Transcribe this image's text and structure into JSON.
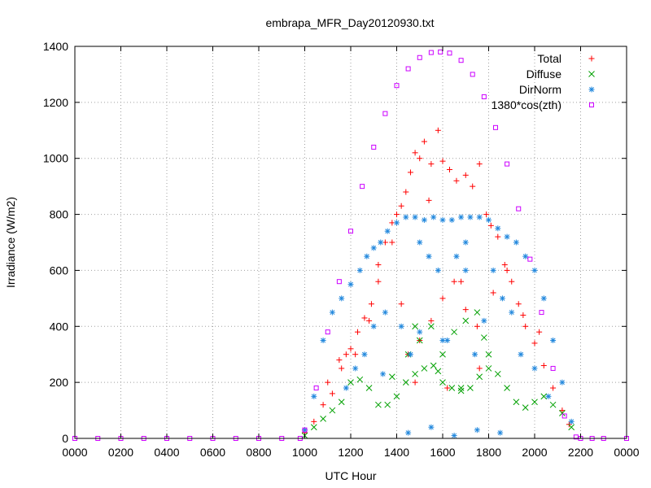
{
  "chart_data": {
    "type": "scatter",
    "title": "embrapa_MFR_Day20120930.txt",
    "xlabel": "UTC Hour",
    "ylabel": "Irradiance (W/m2)",
    "xlim": [
      0,
      2400
    ],
    "ylim": [
      0,
      1400
    ],
    "x_tick_labels": [
      "0000",
      "0200",
      "0400",
      "0600",
      "0800",
      "1000",
      "1200",
      "1400",
      "1600",
      "1800",
      "2000",
      "2200",
      "0000"
    ],
    "y_ticks": [
      0,
      200,
      400,
      600,
      800,
      1000,
      1200,
      1400
    ],
    "grid": true,
    "legend_position": "top-right",
    "series": [
      {
        "name": "Total",
        "marker": "plus",
        "color": "#ff0000",
        "x": [
          1000,
          1040,
          1080,
          1120,
          1150,
          1180,
          1200,
          1230,
          1260,
          1290,
          1320,
          1350,
          1380,
          1400,
          1420,
          1440,
          1460,
          1480,
          1500,
          1520,
          1550,
          1580,
          1600,
          1630,
          1660,
          1700,
          1730,
          1760,
          1790,
          1810,
          1840,
          1870,
          1900,
          1930,
          1960,
          2000,
          2040,
          2080,
          2120,
          2150,
          1450,
          1500,
          1550,
          1600,
          1650,
          1700,
          1750,
          1320,
          1380,
          1420,
          1480,
          1540,
          1620,
          1680,
          1760,
          1820,
          1880,
          1950,
          2020,
          1100,
          1160,
          1220,
          1280
        ],
        "y": [
          20,
          60,
          120,
          160,
          280,
          300,
          320,
          380,
          430,
          480,
          560,
          700,
          770,
          800,
          830,
          880,
          950,
          1020,
          1000,
          1060,
          980,
          1100,
          990,
          960,
          920,
          940,
          900,
          980,
          800,
          760,
          720,
          620,
          560,
          480,
          400,
          340,
          260,
          180,
          100,
          50,
          300,
          350,
          420,
          500,
          560,
          460,
          400,
          620,
          700,
          480,
          200,
          850,
          180,
          560,
          250,
          520,
          600,
          440,
          380,
          200,
          250,
          300,
          420
        ]
      },
      {
        "name": "Diffuse",
        "marker": "cross",
        "color": "#00a000",
        "x": [
          1000,
          1040,
          1080,
          1120,
          1160,
          1200,
          1240,
          1280,
          1320,
          1360,
          1400,
          1440,
          1480,
          1520,
          1560,
          1600,
          1640,
          1680,
          1720,
          1760,
          1800,
          1840,
          1880,
          1920,
          1960,
          2000,
          2040,
          2080,
          2120,
          2160,
          1450,
          1500,
          1550,
          1600,
          1650,
          1700,
          1750,
          1800,
          1380,
          1480,
          1580,
          1680,
          1780
        ],
        "y": [
          10,
          40,
          70,
          100,
          130,
          200,
          210,
          180,
          120,
          120,
          150,
          200,
          230,
          250,
          260,
          200,
          180,
          170,
          180,
          220,
          250,
          230,
          180,
          130,
          110,
          130,
          150,
          120,
          90,
          40,
          300,
          350,
          400,
          300,
          380,
          420,
          450,
          300,
          220,
          400,
          240,
          180,
          360
        ]
      },
      {
        "name": "DirNorm",
        "marker": "star",
        "color": "#2288dd",
        "x": [
          1000,
          1040,
          1080,
          1120,
          1160,
          1200,
          1240,
          1270,
          1300,
          1330,
          1360,
          1400,
          1440,
          1480,
          1520,
          1560,
          1600,
          1640,
          1680,
          1720,
          1760,
          1800,
          1840,
          1880,
          1920,
          1960,
          2000,
          2040,
          2080,
          2120,
          2160,
          1180,
          1220,
          1260,
          1300,
          1340,
          1420,
          1460,
          1500,
          1540,
          1580,
          1620,
          1660,
          1700,
          1740,
          1780,
          1820,
          1860,
          1900,
          1940,
          2000,
          2060,
          1450,
          1550,
          1650,
          1750,
          1850,
          1350,
          1500,
          1600,
          1700
        ],
        "y": [
          30,
          150,
          350,
          450,
          500,
          550,
          600,
          650,
          680,
          700,
          740,
          770,
          790,
          790,
          780,
          790,
          780,
          780,
          790,
          790,
          790,
          780,
          750,
          720,
          700,
          650,
          600,
          500,
          350,
          200,
          60,
          180,
          250,
          300,
          400,
          230,
          400,
          300,
          700,
          650,
          600,
          350,
          650,
          700,
          300,
          420,
          600,
          500,
          450,
          300,
          250,
          150,
          20,
          40,
          10,
          30,
          20,
          450,
          380,
          350,
          600
        ]
      },
      {
        "name": "1380*cos(zth)",
        "marker": "square",
        "color": "#cc00ff",
        "x": [
          0,
          100,
          200,
          300,
          400,
          500,
          600,
          700,
          800,
          900,
          980,
          1000,
          1050,
          1100,
          1150,
          1200,
          1250,
          1300,
          1350,
          1400,
          1450,
          1500,
          1550,
          1590,
          1630,
          1680,
          1730,
          1780,
          1830,
          1880,
          1930,
          1980,
          2030,
          2080,
          2130,
          2180,
          2200,
          2250,
          2300,
          2400
        ],
        "y": [
          0,
          0,
          0,
          0,
          0,
          0,
          0,
          0,
          0,
          0,
          0,
          30,
          180,
          380,
          560,
          740,
          900,
          1040,
          1160,
          1260,
          1320,
          1360,
          1378,
          1380,
          1376,
          1350,
          1300,
          1220,
          1110,
          980,
          820,
          640,
          450,
          250,
          80,
          5,
          0,
          0,
          0,
          0
        ]
      }
    ]
  }
}
